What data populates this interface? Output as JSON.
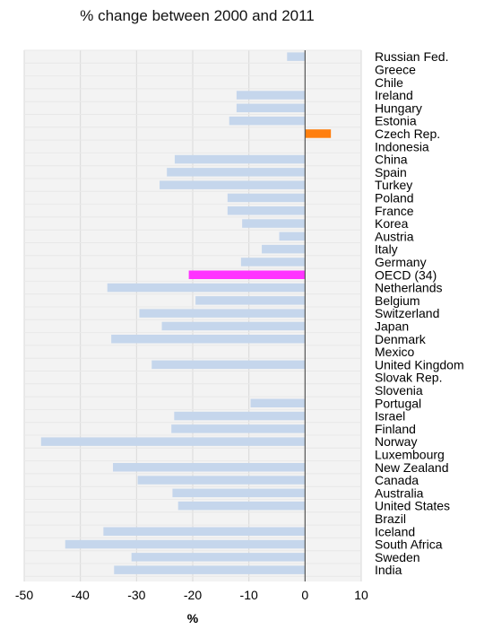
{
  "chart_data": {
    "type": "bar",
    "orientation": "horizontal",
    "title": "% change between 2000 and 2011",
    "xlabel": "%",
    "ylabel": "",
    "xlim": [
      -50,
      10
    ],
    "xticks": [
      -50,
      -40,
      -30,
      -20,
      -10,
      0,
      10
    ],
    "grid": true,
    "colors": {
      "default": "#c5d6ec",
      "highlight_oecd": "#ff33ff",
      "highlight_positive": "#ff7f0e",
      "zero_line": "#555555",
      "grid": "#d9d9d9"
    },
    "categories": [
      "Russian Fed.",
      "Greece",
      "Chile",
      "Ireland",
      "Hungary",
      "Estonia",
      "Czech Rep.",
      "Indonesia",
      "China",
      "Spain",
      "Turkey",
      "Poland",
      "France",
      "Korea",
      "Austria",
      "Italy",
      "Germany",
      "OECD (34)",
      "Netherlands",
      "Belgium",
      "Switzerland",
      "Japan",
      "Denmark",
      "Mexico",
      "United Kingdom",
      "Slovak Rep.",
      "Slovenia",
      "Portugal",
      "Israel",
      "Finland",
      "Norway",
      "Luxembourg",
      "New Zealand",
      "Canada",
      "Australia",
      "United States",
      "Brazil",
      "Iceland",
      "South Africa",
      "Sweden",
      "India"
    ],
    "values": [
      -3.2,
      null,
      null,
      -12.2,
      -12.2,
      -13.5,
      4.6,
      null,
      -23.2,
      -24.6,
      -25.9,
      -13.8,
      -13.8,
      -11.2,
      -4.6,
      -7.7,
      -11.4,
      -20.7,
      -35.2,
      -19.5,
      -29.5,
      -25.5,
      -34.5,
      null,
      -27.3,
      null,
      null,
      -9.7,
      -23.3,
      -23.8,
      -47.0,
      null,
      -34.2,
      -29.8,
      -23.6,
      -22.6,
      null,
      -35.9,
      -42.7,
      -30.9,
      -34.0
    ],
    "highlight": {
      "OECD (34)": "highlight_oecd",
      "Czech Rep.": "highlight_positive"
    }
  }
}
